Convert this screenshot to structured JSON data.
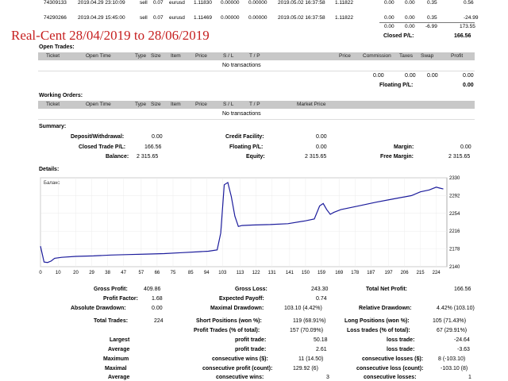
{
  "top_rows": [
    {
      "ticket": "74309133",
      "open_time": "2019.04.29 23:10:09",
      "type": "sell",
      "size": "0.07",
      "item": "eurusd",
      "price": "1.11830",
      "sl": "0.00000",
      "tp": "0.00000",
      "close_time": "2019.05.02 16:37:58",
      "close_price": "1.11822",
      "commission": "0.00",
      "taxes": "0.00",
      "swap": "0.35",
      "profit": "0.56"
    },
    {
      "ticket": "74290266",
      "open_time": "2019.04.29 15:45:00",
      "type": "sell",
      "size": "0.07",
      "item": "eurusd",
      "price": "1.11469",
      "sl": "0.00000",
      "tp": "0.00000",
      "close_time": "2019.05.02 16:37:58",
      "close_price": "1.11822",
      "commission": "0.00",
      "taxes": "0.00",
      "swap": "0.35",
      "profit": "-24.99"
    }
  ],
  "totals_row": {
    "commission": "0.00",
    "taxes": "0.00",
    "swap": "-6.99",
    "profit": "173.55"
  },
  "closed_pl": {
    "label": "Closed P/L:",
    "value": "166.56"
  },
  "title_overlay": "Real-Cent  28/04/2019 to 28/06/2019",
  "open_trades": {
    "title": "Open Trades:",
    "headers": [
      "Ticket",
      "Open Time",
      "Type",
      "Size",
      "Item",
      "Price",
      "S / L",
      "T / P",
      "Price",
      "Commission",
      "Taxes",
      "Swap",
      "Profit"
    ],
    "empty": "No transactions",
    "totals": [
      "0.00",
      "0.00",
      "0.00"
    ],
    "total_profit": "0.00",
    "floating_label": "Floating P/L:",
    "floating_value": "0.00"
  },
  "working_orders": {
    "title": "Working Orders:",
    "headers": [
      "Ticket",
      "Open Time",
      "Type",
      "Size",
      "Item",
      "Price",
      "S / L",
      "T / P",
      "Market Price"
    ],
    "empty": "No transactions"
  },
  "summary": {
    "title": "Summary:",
    "deposit_label": "Deposit/Withdrawal:",
    "deposit": "0.00",
    "credit_label": "Credit Facility:",
    "credit": "0.00",
    "closed_label": "Closed Trade P/L:",
    "closed": "166.56",
    "floating_label": "Floating P/L:",
    "floating": "0.00",
    "margin_label": "Margin:",
    "margin": "0.00",
    "balance_label": "Balance:",
    "balance": "2 315.65",
    "equity_label": "Equity:",
    "equity": "2 315.65",
    "free_margin_label": "Free Margin:",
    "free_margin": "2 315.65"
  },
  "details_title": "Details:",
  "chart_data": {
    "type": "line",
    "title": "Баланс",
    "x_ticks": [
      "0",
      "10",
      "20",
      "29",
      "38",
      "47",
      "57",
      "66",
      "75",
      "85",
      "94",
      "103",
      "113",
      "122",
      "131",
      "141",
      "150",
      "159",
      "169",
      "178",
      "187",
      "197",
      "206",
      "215",
      "224"
    ],
    "y_ticks": [
      "2330",
      "2292",
      "2254",
      "2216",
      "2178",
      "2140"
    ],
    "ylim": [
      2140,
      2330
    ],
    "xlim": [
      0,
      230
    ],
    "x": [
      0,
      2,
      4,
      6,
      8,
      12,
      20,
      30,
      40,
      50,
      60,
      70,
      80,
      90,
      95,
      100,
      102,
      104,
      106,
      108,
      110,
      112,
      114,
      120,
      130,
      140,
      150,
      155,
      158,
      160,
      162,
      164,
      166,
      170,
      180,
      190,
      200,
      210,
      215,
      220,
      224,
      226,
      228
    ],
    "values": [
      2184,
      2150,
      2149,
      2152,
      2158,
      2160,
      2162,
      2163,
      2165,
      2166,
      2167,
      2168,
      2170,
      2172,
      2173,
      2176,
      2212,
      2315,
      2320,
      2290,
      2248,
      2226,
      2228,
      2229,
      2230,
      2232,
      2238,
      2242,
      2270,
      2275,
      2262,
      2252,
      2256,
      2262,
      2270,
      2278,
      2285,
      2292,
      2300,
      2304,
      2310,
      2308,
      2306
    ],
    "xlabel": "",
    "ylabel": ""
  },
  "stats": {
    "gross_profit_label": "Gross Profit:",
    "gross_profit": "409.86",
    "gross_loss_label": "Gross Loss:",
    "gross_loss": "243.30",
    "total_net_label": "Total Net Profit:",
    "total_net": "166.56",
    "profit_factor_label": "Profit Factor:",
    "profit_factor": "1.68",
    "expected_payoff_label": "Expected Payoff:",
    "expected_payoff": "0.74",
    "abs_dd_label": "Absolute Drawdown:",
    "abs_dd": "0.00",
    "max_dd_label": "Maximal Drawdown:",
    "max_dd": "103.10 (4.42%)",
    "rel_dd_label": "Relative Drawdown:",
    "rel_dd": "4.42% (103.10)",
    "total_trades_label": "Total Trades:",
    "total_trades": "224",
    "short_label": "Short Positions (won %):",
    "short": "119 (68.91%)",
    "long_label": "Long Positions (won %):",
    "long": "105 (71.43%)",
    "profit_trades_label": "Profit Trades (% of total):",
    "profit_trades": "157 (70.09%)",
    "loss_trades_label": "Loss trades (% of total):",
    "loss_trades": "67 (29.91%)",
    "largest_label": "Largest",
    "largest_profit_label": "profit trade:",
    "largest_profit": "50.18",
    "largest_loss_label": "loss trade:",
    "largest_loss": "-24.64",
    "average_label": "Average",
    "avg_profit_label": "profit trade:",
    "avg_profit": "2.61",
    "avg_loss_label": "loss trade:",
    "avg_loss": "-3.63",
    "maximum_label": "Maximum",
    "max_wins_label": "consecutive wins ($):",
    "max_wins": "11 (14.50)",
    "max_losses_label": "consecutive losses ($):",
    "max_losses": "8 (-103.10)",
    "maximal_label": "Maximal",
    "maxl_profit_label": "consecutive profit (count):",
    "maxl_profit": "129.92 (6)",
    "maxl_loss_label": "consecutive loss (count):",
    "maxl_loss": "-103.10 (8)",
    "average2_label": "Average",
    "avg_wins_label": "consecutive wins:",
    "avg_wins": "3",
    "avg_losses_label": "consecutive losses:",
    "avg_losses": "1"
  }
}
